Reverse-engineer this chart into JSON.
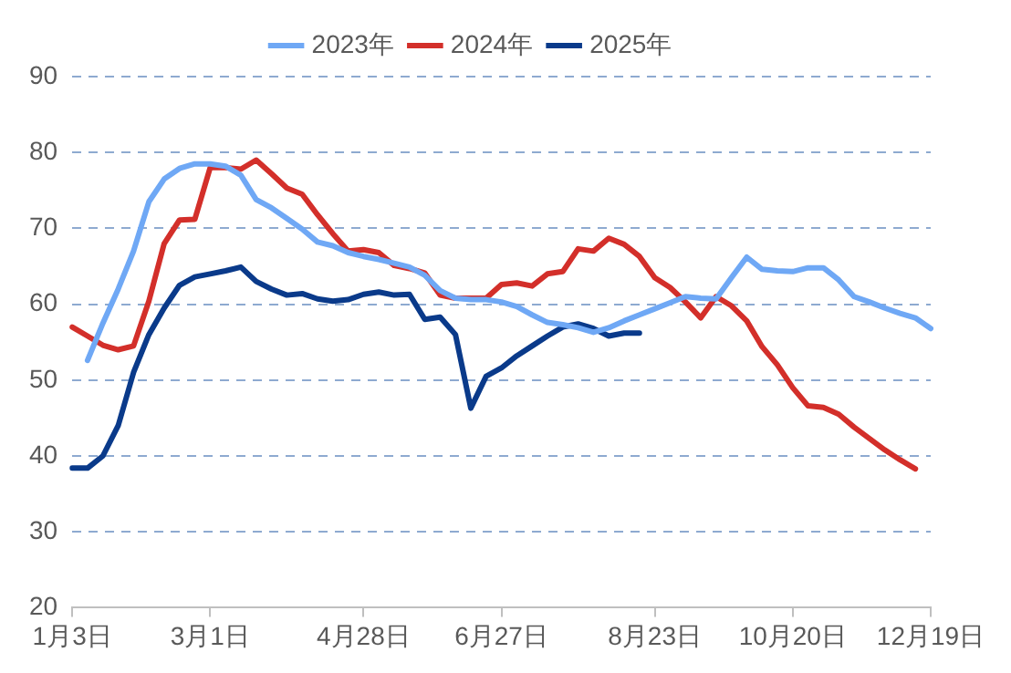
{
  "chart_data": {
    "type": "line",
    "categories": [
      "1月3日",
      null,
      null,
      null,
      null,
      null,
      null,
      null,
      null,
      "3月1日",
      null,
      null,
      null,
      null,
      null,
      null,
      null,
      null,
      null,
      "4月28日",
      null,
      null,
      null,
      null,
      null,
      null,
      null,
      null,
      "6月27日",
      null,
      null,
      null,
      null,
      null,
      null,
      null,
      null,
      null,
      "8月23日",
      null,
      null,
      null,
      null,
      null,
      null,
      null,
      null,
      "10月20日",
      null,
      null,
      null,
      null,
      null,
      null,
      null,
      null,
      "12月19日"
    ],
    "series": [
      {
        "name": "2023年",
        "color": "#6fa8f5",
        "values": [
          null,
          52.6,
          57.5,
          62,
          67,
          73.5,
          76.5,
          77.9,
          78.5,
          78.5,
          78.2,
          77,
          73.8,
          72.7,
          71.3,
          69.9,
          68.2,
          67.7,
          66.8,
          66.3,
          65.9,
          65.4,
          64.9,
          63.8,
          61.8,
          60.8,
          60.6,
          60.6,
          60.3,
          59.7,
          58.6,
          57.6,
          57.3,
          56.9,
          56.3,
          56.9,
          57.8,
          58.6,
          59.4,
          60.2,
          61,
          60.8,
          60.7,
          63.5,
          66.2,
          64.6,
          64.4,
          64.3,
          64.8,
          64.8,
          63.2,
          61,
          60.3,
          59.5,
          58.8,
          58.2,
          56.8
        ]
      },
      {
        "name": "2024年",
        "color": "#d32f2a",
        "values": [
          57,
          55.8,
          54.6,
          54,
          54.5,
          60.4,
          68,
          71.1,
          71.2,
          78,
          78,
          77.8,
          79,
          77.2,
          75.3,
          74.5,
          71.8,
          69.3,
          67,
          67.2,
          66.8,
          65.1,
          64.7,
          64.1,
          61.2,
          60.8,
          60.8,
          60.8,
          62.6,
          62.8,
          62.4,
          64,
          64.3,
          67.3,
          67,
          68.7,
          67.9,
          66.3,
          63.5,
          62.2,
          60.3,
          58.2,
          61,
          59.8,
          57.8,
          54.4,
          52,
          49,
          46.6,
          46.4,
          45.5,
          43.8,
          42.3,
          40.8,
          39.5,
          38.3,
          null
        ]
      },
      {
        "name": "2025年",
        "color": "#0a3a8a",
        "values": [
          38.4,
          38.4,
          40,
          44,
          51,
          56,
          59.5,
          62.5,
          63.6,
          64,
          64.4,
          64.9,
          63,
          62,
          61.2,
          61.4,
          60.7,
          60.4,
          60.6,
          61.3,
          61.6,
          61.2,
          61.3,
          58,
          58.3,
          56,
          46.3,
          50.5,
          51.6,
          53.2,
          54.5,
          55.8,
          57,
          57.4,
          56.8,
          55.8,
          56.2,
          56.2,
          null,
          null,
          null,
          null,
          null,
          null,
          null,
          null,
          null,
          null,
          null,
          null,
          null,
          null,
          null,
          null,
          null,
          null,
          null
        ]
      }
    ],
    "ylim": [
      20,
      90
    ],
    "yticks": [
      20,
      30,
      40,
      50,
      60,
      70,
      80,
      90
    ],
    "grid": "y",
    "legend": "top",
    "marker": "none",
    "line_style": "solid"
  }
}
